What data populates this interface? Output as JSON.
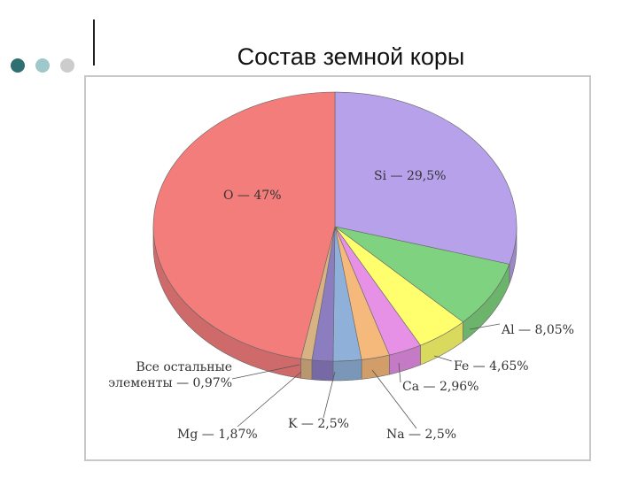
{
  "chart_data": {
    "type": "pie",
    "title": "Состав земной коры",
    "categories": [
      "Si",
      "Al",
      "Fe",
      "Ca",
      "Na",
      "K",
      "Mg",
      "Все остальные элементы",
      "O"
    ],
    "values": [
      29.5,
      8.05,
      4.65,
      2.96,
      2.5,
      2.5,
      1.87,
      0.97,
      47
    ],
    "value_labels": [
      "Si — 29,5%",
      "Al — 8,05%",
      "Fe — 4,65%",
      "Ca — 2,96%",
      "Na — 2,5%",
      "K — 2,5%",
      "Mg — 1,87%",
      "Все остальные\nэлементы — 0,97%",
      "O — 47%"
    ],
    "colors": [
      "#b6a1ea",
      "#7fd27f",
      "#ffff6e",
      "#e690e6",
      "#f6b97c",
      "#8fb1d9",
      "#8c7cc0",
      "#d9b283",
      "#f27d7b"
    ]
  }
}
